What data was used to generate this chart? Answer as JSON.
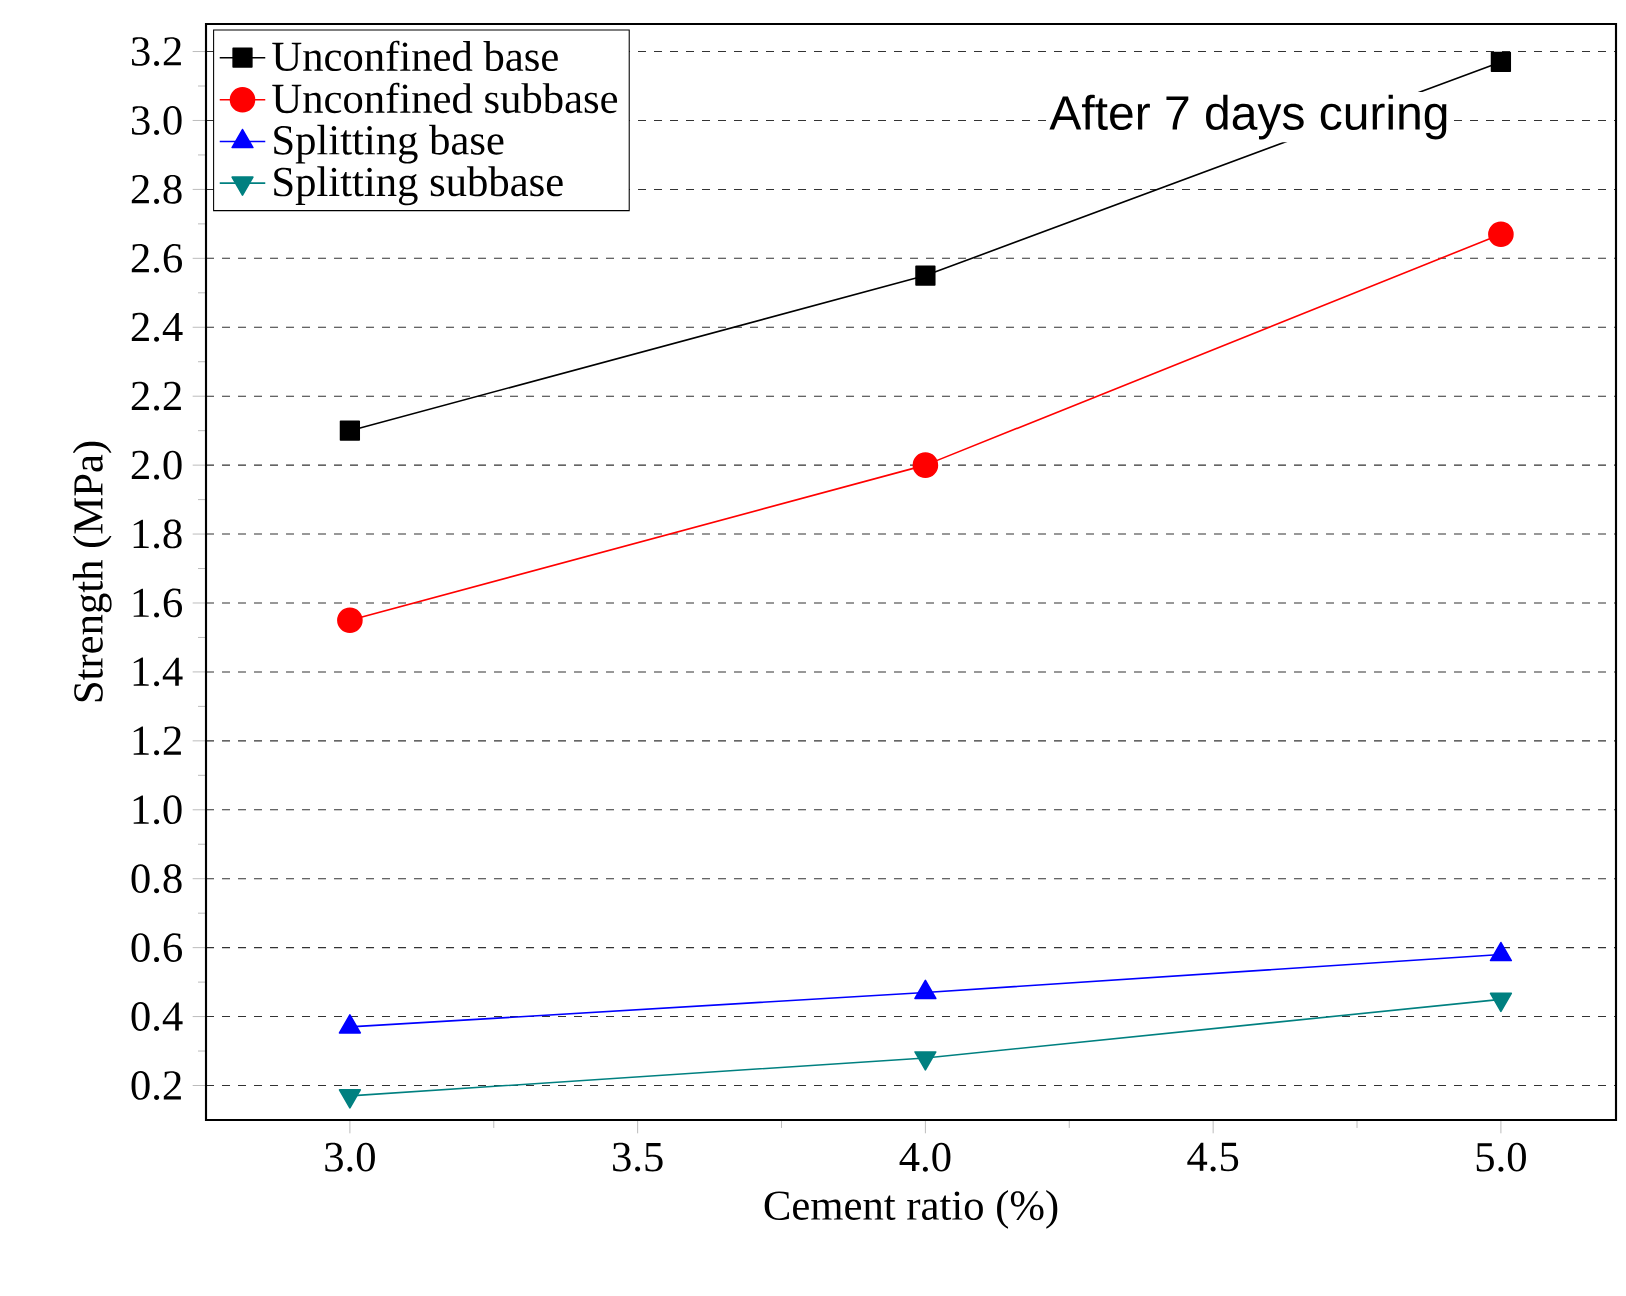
{
  "chart_data": {
    "type": "line",
    "xlabel": "Cement ratio (%)",
    "ylabel": "Strength (MPa)",
    "annotations": [
      "After 7 days curing"
    ],
    "x": [
      3.0,
      4.0,
      5.0
    ],
    "series": [
      {
        "name": "Unconfined base",
        "color": "#000000",
        "marker": "square",
        "values": [
          2.1,
          2.55,
          3.17
        ]
      },
      {
        "name": "Unconfined subbase",
        "color": "#ff0000",
        "marker": "circle",
        "values": [
          1.55,
          2.0,
          2.67
        ]
      },
      {
        "name": "Splitting base",
        "color": "#0000ff",
        "marker": "triangle",
        "values": [
          0.37,
          0.47,
          0.58
        ]
      },
      {
        "name": "Splitting subbase",
        "color": "#008080",
        "marker": "triangle-down",
        "values": [
          0.17,
          0.28,
          0.45
        ]
      }
    ],
    "xlim": [
      2.75,
      5.2
    ],
    "xticks": [
      {
        "value": 3,
        "label": "3.0"
      },
      3.5,
      {
        "value": 4,
        "label": "4.0"
      },
      4.5,
      {
        "value": 5,
        "label": "5.0"
      }
    ],
    "ylim": [
      0.1,
      3.28
    ],
    "yticks": [
      0.2,
      0.4,
      0.6,
      0.8,
      {
        "value": 1,
        "label": "1.0"
      },
      1.2,
      1.4,
      1.6,
      1.8,
      {
        "value": 2,
        "label": "2.0"
      },
      2.2,
      2.4,
      2.6,
      2.8,
      {
        "value": 3,
        "label": "3.0"
      },
      3.2
    ],
    "grid": "y",
    "legend": "top left",
    "line_style": "solid"
  }
}
